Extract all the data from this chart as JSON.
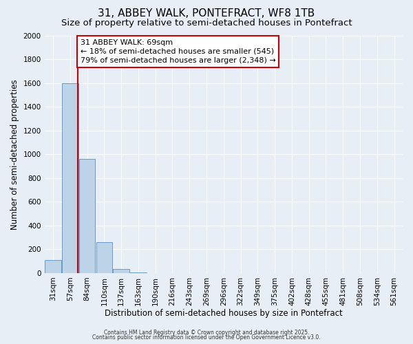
{
  "title": "31, ABBEY WALK, PONTEFRACT, WF8 1TB",
  "subtitle": "Size of property relative to semi-detached houses in Pontefract",
  "xlabel": "Distribution of semi-detached houses by size in Pontefract",
  "ylabel": "Number of semi-detached properties",
  "bin_labels": [
    "31sqm",
    "57sqm",
    "84sqm",
    "110sqm",
    "137sqm",
    "163sqm",
    "190sqm",
    "216sqm",
    "243sqm",
    "269sqm",
    "296sqm",
    "322sqm",
    "349sqm",
    "375sqm",
    "402sqm",
    "428sqm",
    "455sqm",
    "481sqm",
    "508sqm",
    "534sqm",
    "561sqm"
  ],
  "bar_heights": [
    110,
    1600,
    960,
    260,
    35,
    5,
    2,
    0,
    0,
    0,
    0,
    0,
    0,
    0,
    0,
    0,
    0,
    0,
    0,
    0,
    0
  ],
  "bar_color": "#bdd4e8",
  "bar_edge_color": "#6699cc",
  "property_bin_index": 1,
  "property_label": "69sqm",
  "ylim": [
    0,
    2000
  ],
  "annotation_title": "31 ABBEY WALK: 69sqm",
  "annotation_line1": "← 18% of semi-detached houses are smaller (545)",
  "annotation_line2": "79% of semi-detached houses are larger (2,348) →",
  "annotation_box_color": "#ffffff",
  "annotation_box_edge": "#cc0000",
  "red_line_color": "#cc0000",
  "background_color": "#e8eef5",
  "grid_color": "#ffffff",
  "footer1": "Contains HM Land Registry data © Crown copyright and database right 2025.",
  "footer2": "Contains public sector information licensed under the Open Government Licence v3.0.",
  "title_fontsize": 11,
  "subtitle_fontsize": 9.5,
  "ylabel_fontsize": 8.5,
  "xlabel_fontsize": 8.5,
  "tick_fontsize": 7.5,
  "annotation_fontsize": 8,
  "footer_fontsize": 5.5
}
